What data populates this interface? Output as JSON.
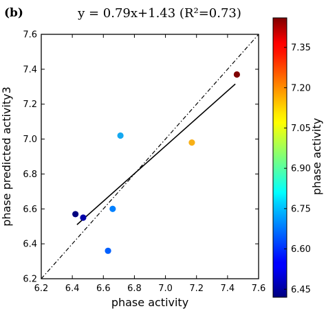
{
  "panel_label": "(b)",
  "chart_data": {
    "type": "scatter",
    "title": "y = 0.79x+1.43 (R²=0.73)",
    "xlabel": "phase activity",
    "ylabel": "phase predicted activity3",
    "xlim": [
      6.2,
      7.6
    ],
    "ylim": [
      6.2,
      7.6
    ],
    "xticks": [
      6.2,
      6.4,
      6.6,
      6.8,
      7.0,
      7.2,
      7.4,
      7.6
    ],
    "yticks": [
      6.2,
      6.4,
      6.6,
      6.8,
      7.0,
      7.2,
      7.4,
      7.6
    ],
    "x_tick_labels": [
      "6.2",
      "6.4",
      "6.6",
      "6.8",
      "7.0",
      "7.2",
      "7.4",
      "7.6"
    ],
    "y_tick_labels": [
      "6.2",
      "6.4",
      "6.6",
      "6.8",
      "7.0",
      "7.2",
      "7.4",
      "7.6"
    ],
    "grid": false,
    "points": [
      {
        "x": 6.42,
        "y": 6.57,
        "color": "#00007f"
      },
      {
        "x": 6.47,
        "y": 6.55,
        "color": "#0000a8"
      },
      {
        "x": 6.63,
        "y": 6.36,
        "color": "#0060ff"
      },
      {
        "x": 6.66,
        "y": 6.6,
        "color": "#0080ff"
      },
      {
        "x": 6.71,
        "y": 7.02,
        "color": "#14a8f0"
      },
      {
        "x": 7.17,
        "y": 6.98,
        "color": "#f8b016"
      },
      {
        "x": 7.46,
        "y": 7.37,
        "color": "#800000"
      }
    ],
    "fit_line": {
      "slope": 0.79,
      "intercept": 1.43,
      "x_range": [
        6.43,
        7.45
      ],
      "style": "solid",
      "color": "#000000"
    },
    "identity_line": {
      "x_range": [
        6.2,
        7.6
      ],
      "style": "dash-dot",
      "color": "#000000"
    },
    "colorbar": {
      "label": "phase activity",
      "range": [
        6.42,
        7.46
      ],
      "ticks": [
        6.45,
        6.6,
        6.75,
        6.9,
        7.05,
        7.2,
        7.35
      ],
      "tick_labels": [
        "6.45",
        "6.60",
        "6.75",
        "6.90",
        "7.05",
        "7.20",
        "7.35"
      ],
      "colormap": "jet"
    }
  }
}
